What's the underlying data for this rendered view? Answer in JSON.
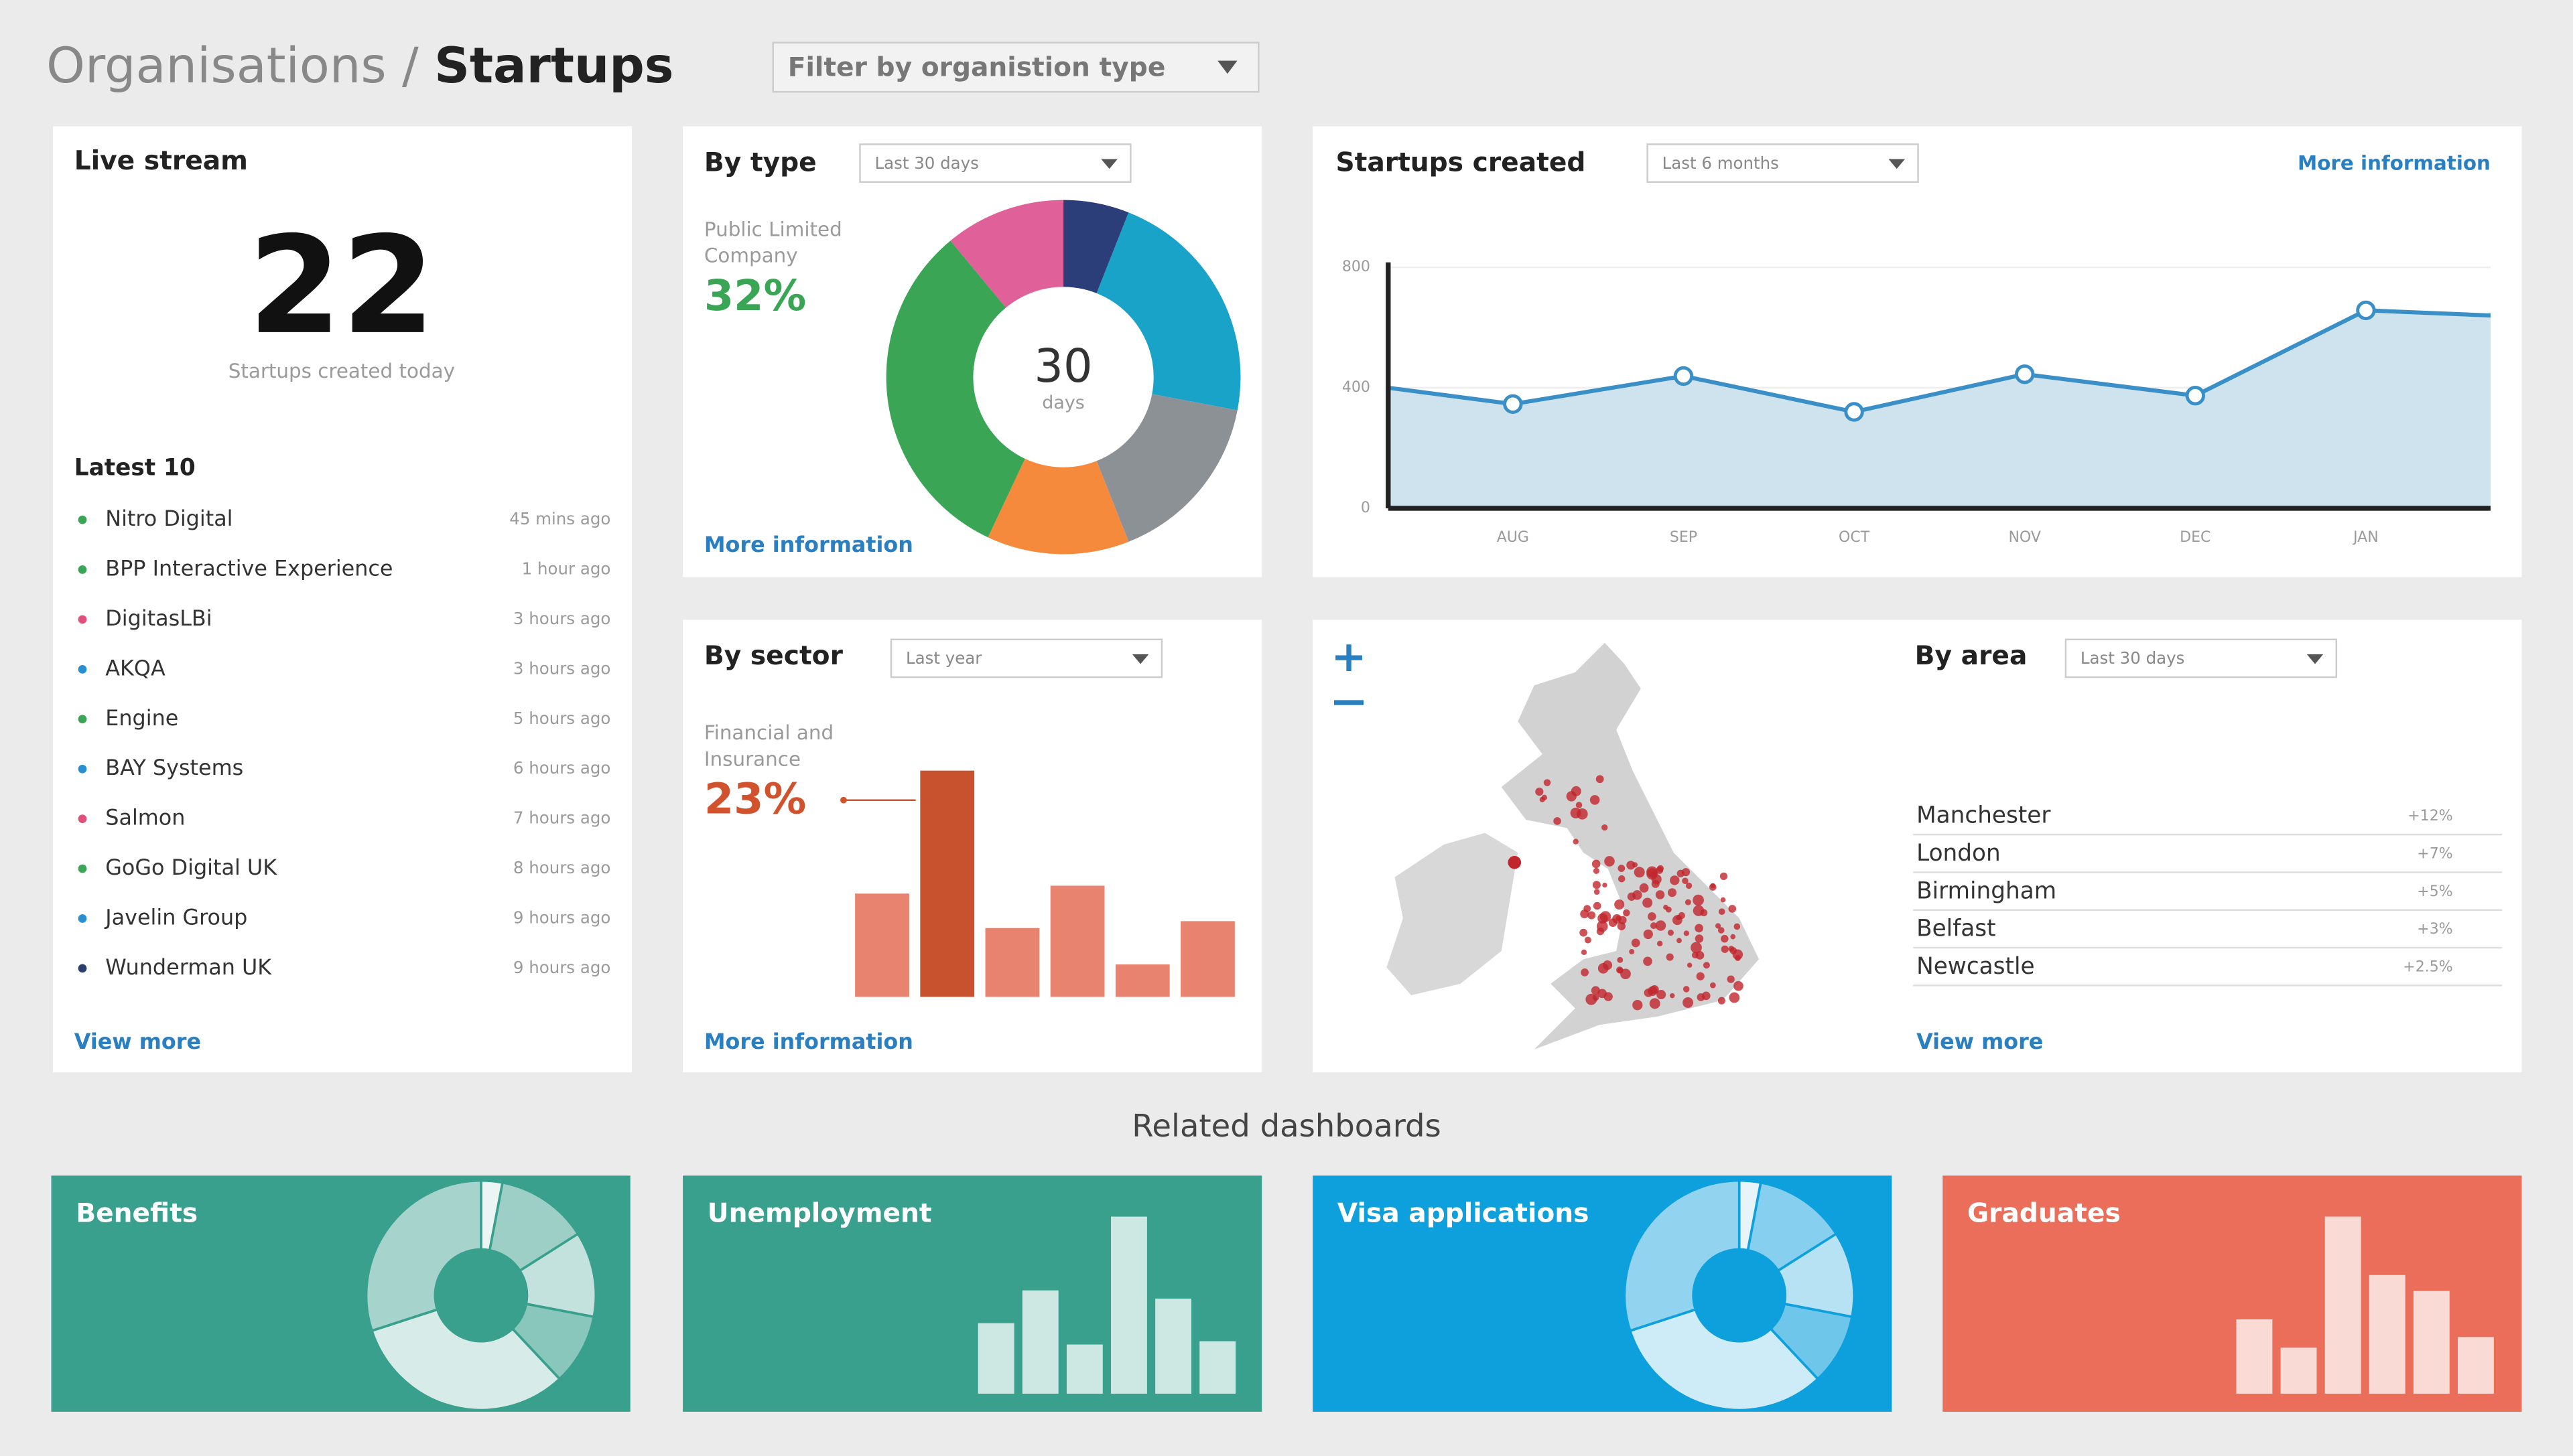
{
  "header": {
    "section": "Organisations",
    "separator": "/",
    "page": "Startups",
    "filter": "Filter by organistion type"
  },
  "live_stream": {
    "title": "Live stream",
    "count": "22",
    "caption": "Startups created today",
    "latest_title": "Latest 10",
    "items": [
      {
        "name": "Nitro Digital",
        "time": "45 mins ago",
        "color": "#3aa655"
      },
      {
        "name": "BPP Interactive Experience",
        "time": "1 hour ago",
        "color": "#3aa655"
      },
      {
        "name": "DigitasLBi",
        "time": "3 hours ago",
        "color": "#e0507a"
      },
      {
        "name": "AKQA",
        "time": "3 hours ago",
        "color": "#2a8fd0"
      },
      {
        "name": "Engine",
        "time": "5 hours ago",
        "color": "#3aa655"
      },
      {
        "name": "BAY Systems",
        "time": "6 hours ago",
        "color": "#2a8fd0"
      },
      {
        "name": "Salmon",
        "time": "7 hours ago",
        "color": "#e0507a"
      },
      {
        "name": "GoGo Digital UK",
        "time": "8 hours ago",
        "color": "#3aa655"
      },
      {
        "name": "Javelin Group",
        "time": "9 hours ago",
        "color": "#2a8fd0"
      },
      {
        "name": "Wunderman UK",
        "time": "9 hours ago",
        "color": "#2c3e6e"
      }
    ],
    "view_more": "View more"
  },
  "by_type": {
    "title": "By type",
    "dropdown": "Last 30 days",
    "label": "Public Limited Company",
    "percent": "32%",
    "center": "30",
    "center_sub": "days",
    "more": "More information",
    "chart_data": {
      "type": "donut",
      "values": [
        6,
        22,
        16,
        13,
        32,
        11
      ],
      "colors": [
        "#2c3e7a",
        "#1aa3c9",
        "#8c9196",
        "#f58a3c",
        "#3aa655",
        "#e0609a"
      ]
    }
  },
  "startups_created": {
    "title": "Startups created",
    "dropdown": "Last 6 months",
    "more": "More information",
    "chart_data": {
      "type": "line",
      "categories": [
        null,
        "AUG",
        "SEP",
        "OCT",
        "NOV",
        "DEC",
        "JAN",
        null
      ],
      "values": [
        400,
        346,
        439,
        320,
        445,
        374,
        657,
        640
      ],
      "color": "#3a8fc6",
      "fill": "#cfe3ef",
      "ylim": [
        0,
        800
      ],
      "yticks": [
        0,
        400,
        800
      ]
    }
  },
  "by_sector": {
    "title": "By sector",
    "dropdown": "Last year",
    "label": "Financial and Insurance",
    "percent": "23%",
    "more": "More information",
    "chart_data": {
      "type": "bar",
      "values": [
        10.5,
        23,
        7,
        11.3,
        3.3,
        7.7
      ],
      "color": "#e8836f",
      "highlight_color": "#c9522e",
      "highlight": 1
    }
  },
  "by_area": {
    "title": "By area",
    "dropdown": "Last 30 days",
    "regions": [
      {
        "name": "Manchester",
        "change": "+12%"
      },
      {
        "name": "London",
        "change": "+7%"
      },
      {
        "name": "Birmingham",
        "change": "+5%"
      },
      {
        "name": "Belfast",
        "change": "+3%"
      },
      {
        "name": "Newcastle",
        "change": "+2.5%"
      }
    ],
    "view_more": "View more"
  },
  "related": {
    "title": "Related dashboards",
    "tiles": [
      {
        "name": "Benefits",
        "color": "#3aa08e",
        "chart": "donut"
      },
      {
        "name": "Unemployment",
        "color": "#3aa08e",
        "chart": "bar",
        "values": [
          43,
          63,
          30,
          108,
          58,
          32
        ]
      },
      {
        "name": "Visa applications",
        "color": "#0ea0dd",
        "chart": "donut"
      },
      {
        "name": "Graduates",
        "color": "#ea6e5a",
        "chart": "bar",
        "values": [
          42,
          26,
          100,
          67,
          58,
          32
        ]
      }
    ]
  }
}
